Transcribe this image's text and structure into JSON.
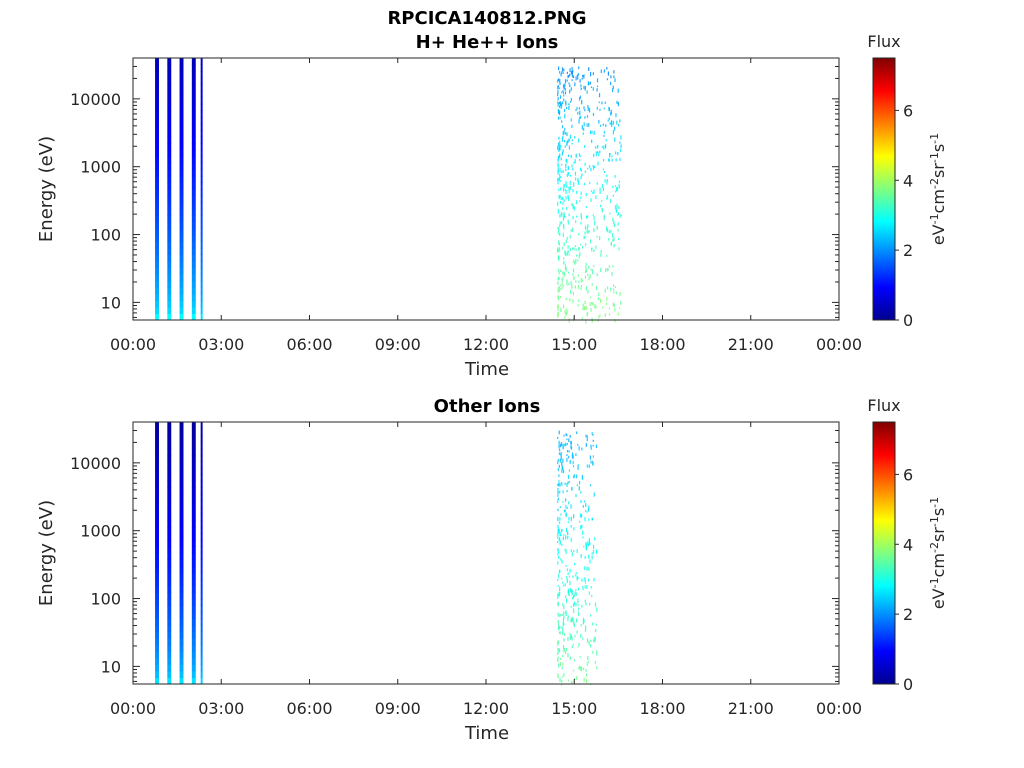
{
  "figure": {
    "filename": "RPCICA140812.PNG"
  },
  "colorbar": {
    "title": "Flux",
    "unit_label": "eV-1cm-2sr-1s-1",
    "ticks": [
      "0",
      "2",
      "4",
      "6"
    ],
    "range": [
      0,
      7.5
    ],
    "colormap": "jet"
  },
  "chart_data": [
    {
      "type": "heatmap",
      "title": "H+ He++ Ions",
      "xlabel": "Time",
      "ylabel": "Energy (eV)",
      "x_ticks": [
        "00:00",
        "03:00",
        "06:00",
        "09:00",
        "12:00",
        "15:00",
        "18:00",
        "21:00",
        "00:00"
      ],
      "x_range_hours": [
        0,
        24
      ],
      "y_ticks": [
        "10",
        "100",
        "1000",
        "10000"
      ],
      "y_scale": "log",
      "y_range": [
        5.5,
        40000
      ],
      "bursts": [
        {
          "start": "00:45",
          "end": "00:53",
          "flux_low_energy": 2.8,
          "flux_high_energy": 0.4
        },
        {
          "start": "01:10",
          "end": "01:18",
          "flux_low_energy": 2.8,
          "flux_high_energy": 0.4
        },
        {
          "start": "01:35",
          "end": "01:43",
          "flux_low_energy": 2.8,
          "flux_high_energy": 0.4
        },
        {
          "start": "02:00",
          "end": "02:08",
          "flux_low_energy": 2.8,
          "flux_high_energy": 0.4
        },
        {
          "start": "02:18",
          "end": "02:22",
          "flux_low_energy": 2.6,
          "flux_high_energy": 0.5
        }
      ],
      "sparse_region": {
        "start": "14:25",
        "end": "16:35",
        "energy_min": 5.5,
        "energy_max": 30000,
        "flux_range": [
          2.0,
          3.8
        ]
      }
    },
    {
      "type": "heatmap",
      "title": "Other Ions",
      "xlabel": "Time",
      "ylabel": "Energy (eV)",
      "x_ticks": [
        "00:00",
        "03:00",
        "06:00",
        "09:00",
        "12:00",
        "15:00",
        "18:00",
        "21:00",
        "00:00"
      ],
      "x_range_hours": [
        0,
        24
      ],
      "y_ticks": [
        "10",
        "100",
        "1000",
        "10000"
      ],
      "y_scale": "log",
      "y_range": [
        5.5,
        40000
      ],
      "bursts": [
        {
          "start": "00:45",
          "end": "00:53",
          "flux_low_energy": 2.6,
          "flux_high_energy": 0.2
        },
        {
          "start": "01:10",
          "end": "01:18",
          "flux_low_energy": 2.6,
          "flux_high_energy": 0.2
        },
        {
          "start": "01:35",
          "end": "01:43",
          "flux_low_energy": 2.6,
          "flux_high_energy": 0.2
        },
        {
          "start": "02:00",
          "end": "02:08",
          "flux_low_energy": 2.6,
          "flux_high_energy": 0.2
        },
        {
          "start": "02:18",
          "end": "02:22",
          "flux_low_energy": 2.5,
          "flux_high_energy": 0.3
        }
      ],
      "sparse_region": {
        "start": "14:25",
        "end": "15:45",
        "energy_min": 5.5,
        "energy_max": 30000,
        "flux_range": [
          2.2,
          3.6
        ]
      }
    }
  ]
}
